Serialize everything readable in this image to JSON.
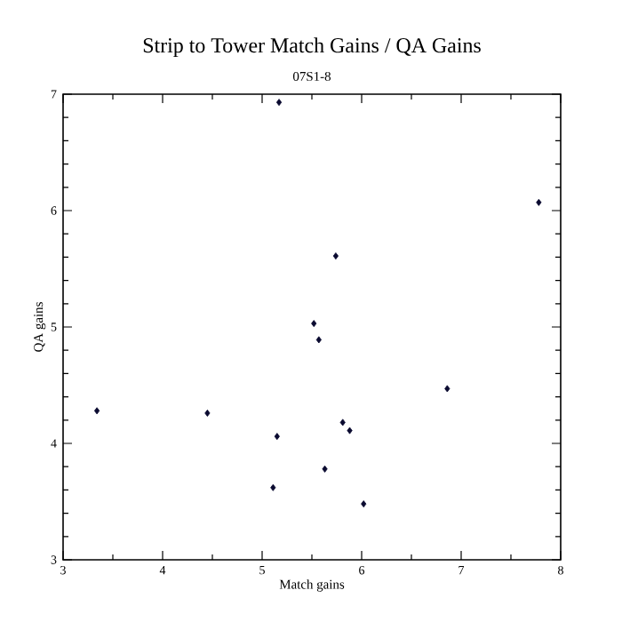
{
  "chart_data": {
    "type": "scatter",
    "title": "Strip to Tower Match Gains / QA Gains",
    "subtitle": "07S1-8",
    "xlabel": "Match gains",
    "ylabel": "QA gains",
    "x": [
      5.17,
      5.74,
      7.78,
      5.52,
      5.57,
      3.34,
      4.45,
      5.15,
      6.86,
      5.81,
      5.88,
      5.63,
      5.11,
      6.02
    ],
    "values": [
      6.93,
      5.61,
      6.07,
      5.03,
      4.89,
      4.28,
      4.26,
      4.06,
      4.47,
      4.18,
      4.11,
      3.78,
      3.62,
      3.48
    ],
    "color": "#0a0a30",
    "marker": "diamond",
    "xlim": [
      3,
      8
    ],
    "ylim": [
      3,
      7
    ],
    "xticks": [
      3,
      4,
      5,
      6,
      7,
      8
    ],
    "yticks": [
      3,
      4,
      5,
      6,
      7
    ],
    "grid": false
  }
}
